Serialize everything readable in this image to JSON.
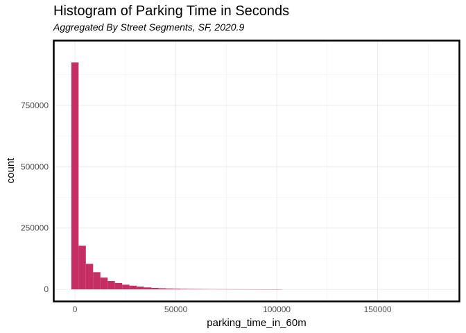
{
  "title": "Histogram of Parking Time in Seconds",
  "subtitle": "Aggregated By Street Segments, SF, 2020.9",
  "chart_data": {
    "type": "bar",
    "title": "Histogram of Parking Time in Seconds",
    "subtitle": "Aggregated By Street Segments, SF, 2020.9",
    "xlabel": "parking_time_in_60m",
    "ylabel": "count",
    "xlim": [
      -10000,
      190000
    ],
    "ylim": [
      -45000,
      1010000
    ],
    "x_ticks": [
      0,
      50000,
      100000,
      150000
    ],
    "x_tick_labels": [
      "0",
      "50000",
      "100000",
      "150000"
    ],
    "y_ticks": [
      0,
      250000,
      500000,
      750000
    ],
    "y_tick_labels": [
      "0",
      "250000",
      "500000",
      "750000"
    ],
    "grid": true,
    "bin_width": 3600,
    "bar_color": "#c42e62",
    "bins_start": [
      -1800,
      1800,
      5400,
      9000,
      12600,
      16200,
      19800,
      23400,
      27000,
      30600,
      34200,
      37800,
      41400,
      45000,
      48600,
      52200,
      55800,
      59400,
      63000,
      66600,
      70200,
      73800,
      77400,
      81000,
      84600,
      88200,
      91800,
      95400,
      99000
    ],
    "values": [
      925000,
      178000,
      104000,
      70000,
      48000,
      34000,
      26000,
      19000,
      15000,
      11000,
      8000,
      6000,
      4500,
      3500,
      2800,
      2200,
      1800,
      1500,
      1200,
      1000,
      800,
      700,
      600,
      500,
      400,
      300,
      250,
      200,
      150
    ]
  }
}
